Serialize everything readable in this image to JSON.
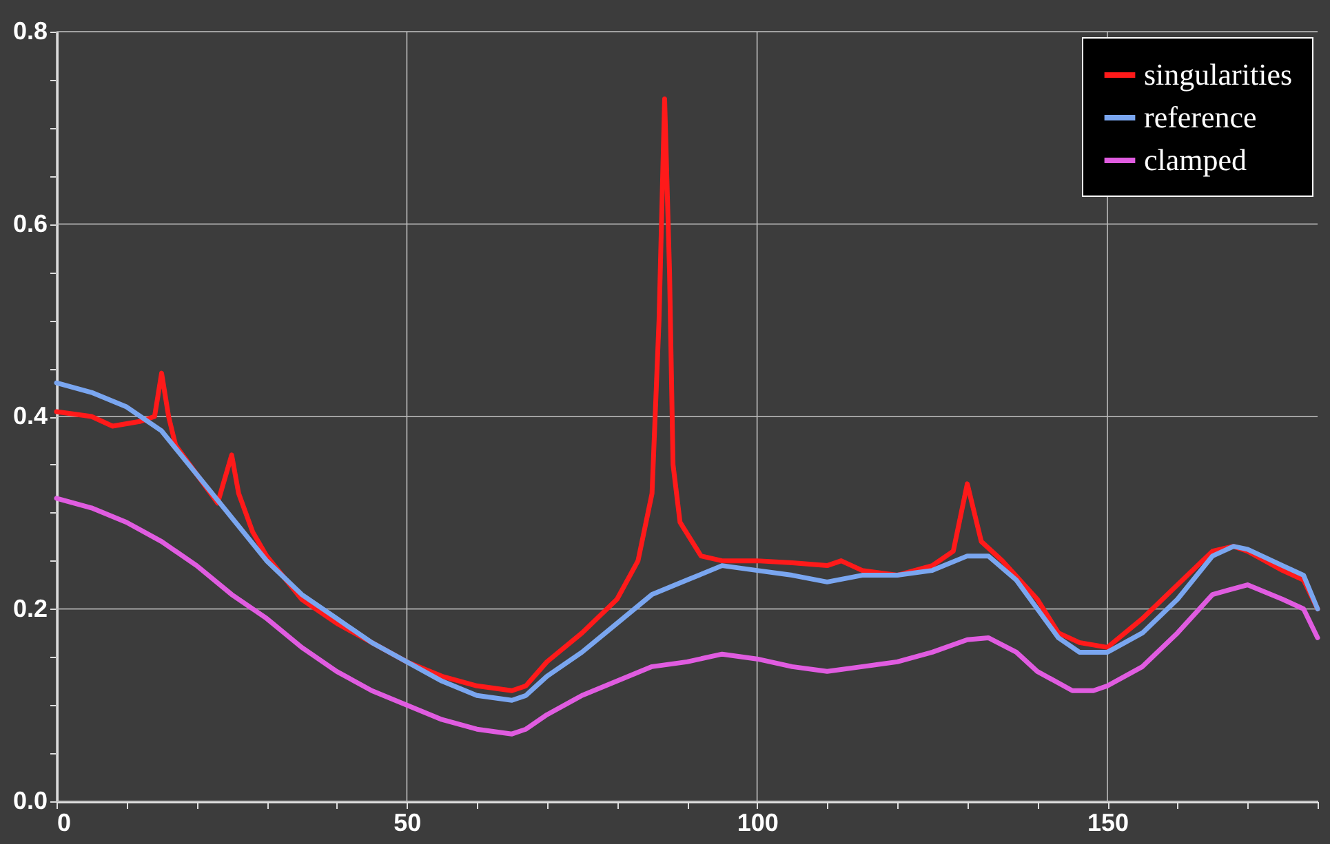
{
  "chart_data": {
    "type": "line",
    "xlim": [
      0,
      180
    ],
    "xticks": [
      0,
      {
        "value": 10,
        "label": null
      },
      {
        "value": 20,
        "label": null
      },
      {
        "value": 30,
        "label": null
      },
      {
        "value": 40,
        "label": null
      },
      50,
      {
        "value": 60,
        "label": null
      },
      {
        "value": 70,
        "label": null
      },
      {
        "value": 80,
        "label": null
      },
      {
        "value": 90,
        "label": null
      },
      100,
      {
        "value": 110,
        "label": null
      },
      {
        "value": 120,
        "label": null
      },
      {
        "value": 130,
        "label": null
      },
      {
        "value": 140,
        "label": null
      },
      150,
      {
        "value": 160,
        "label": null
      },
      {
        "value": 170,
        "label": null
      },
      {
        "value": 180,
        "label": null
      }
    ],
    "ylim": [
      0,
      0.8
    ],
    "yticks": [
      {
        "value": 0,
        "label": "0.0"
      },
      {
        "value": 0.05,
        "label": null
      },
      {
        "value": 0.1,
        "label": null
      },
      {
        "value": 0.15,
        "label": null
      },
      0.2,
      {
        "value": 0.25,
        "label": null
      },
      {
        "value": 0.3,
        "label": null
      },
      {
        "value": 0.35,
        "label": null
      },
      0.4,
      {
        "value": 0.45,
        "label": null
      },
      {
        "value": 0.5,
        "label": null
      },
      {
        "value": 0.55,
        "label": null
      },
      0.6,
      {
        "value": 0.65,
        "label": null
      },
      {
        "value": 0.7,
        "label": null
      },
      {
        "value": 0.75,
        "label": null
      },
      0.8
    ],
    "grid": true,
    "legend": "top right",
    "marker": "none",
    "line_style": "solid",
    "series": [
      {
        "name": "singularities",
        "color": "#ff1a1a",
        "x": [
          0,
          5,
          8,
          12,
          14,
          15,
          16,
          17,
          20,
          23,
          25,
          26,
          28,
          30,
          35,
          40,
          45,
          50,
          55,
          60,
          65,
          67,
          70,
          75,
          80,
          83,
          85,
          86,
          86.8,
          87.5,
          88,
          89,
          92,
          95,
          100,
          105,
          110,
          112,
          115,
          120,
          125,
          128,
          130,
          132,
          135,
          140,
          143,
          146,
          150,
          155,
          160,
          165,
          168,
          170,
          175,
          178,
          180
        ],
        "values": [
          0.405,
          0.4,
          0.39,
          0.395,
          0.4,
          0.445,
          0.4,
          0.37,
          0.34,
          0.31,
          0.36,
          0.32,
          0.28,
          0.255,
          0.21,
          0.185,
          0.165,
          0.145,
          0.13,
          0.12,
          0.115,
          0.12,
          0.145,
          0.175,
          0.21,
          0.25,
          0.32,
          0.5,
          0.73,
          0.55,
          0.35,
          0.29,
          0.255,
          0.25,
          0.25,
          0.248,
          0.245,
          0.25,
          0.24,
          0.235,
          0.245,
          0.26,
          0.33,
          0.27,
          0.25,
          0.21,
          0.175,
          0.165,
          0.16,
          0.19,
          0.225,
          0.26,
          0.265,
          0.26,
          0.24,
          0.23,
          0.2
        ]
      },
      {
        "name": "reference",
        "color": "#7aa6f0",
        "x": [
          0,
          5,
          10,
          15,
          20,
          25,
          30,
          35,
          40,
          45,
          50,
          55,
          60,
          65,
          67,
          70,
          75,
          80,
          85,
          90,
          95,
          100,
          105,
          110,
          115,
          120,
          125,
          130,
          133,
          137,
          140,
          143,
          146,
          150,
          155,
          160,
          165,
          168,
          170,
          175,
          178,
          180
        ],
        "values": [
          0.435,
          0.425,
          0.41,
          0.385,
          0.34,
          0.295,
          0.25,
          0.215,
          0.19,
          0.165,
          0.145,
          0.125,
          0.11,
          0.105,
          0.11,
          0.13,
          0.155,
          0.185,
          0.215,
          0.23,
          0.245,
          0.24,
          0.235,
          0.228,
          0.235,
          0.235,
          0.24,
          0.255,
          0.255,
          0.23,
          0.2,
          0.17,
          0.155,
          0.155,
          0.175,
          0.21,
          0.255,
          0.265,
          0.262,
          0.245,
          0.235,
          0.2
        ]
      },
      {
        "name": "clamped",
        "color": "#e05ce0",
        "x": [
          0,
          5,
          10,
          15,
          20,
          25,
          30,
          35,
          40,
          45,
          50,
          55,
          60,
          65,
          67,
          70,
          75,
          80,
          85,
          90,
          95,
          100,
          105,
          110,
          115,
          120,
          125,
          130,
          133,
          137,
          140,
          145,
          148,
          150,
          155,
          160,
          165,
          170,
          175,
          178,
          180
        ],
        "values": [
          0.315,
          0.305,
          0.29,
          0.27,
          0.245,
          0.215,
          0.19,
          0.16,
          0.135,
          0.115,
          0.1,
          0.085,
          0.075,
          0.07,
          0.075,
          0.09,
          0.11,
          0.125,
          0.14,
          0.145,
          0.153,
          0.148,
          0.14,
          0.135,
          0.14,
          0.145,
          0.155,
          0.168,
          0.17,
          0.155,
          0.135,
          0.115,
          0.115,
          0.12,
          0.14,
          0.175,
          0.215,
          0.225,
          0.21,
          0.2,
          0.17
        ]
      }
    ]
  }
}
